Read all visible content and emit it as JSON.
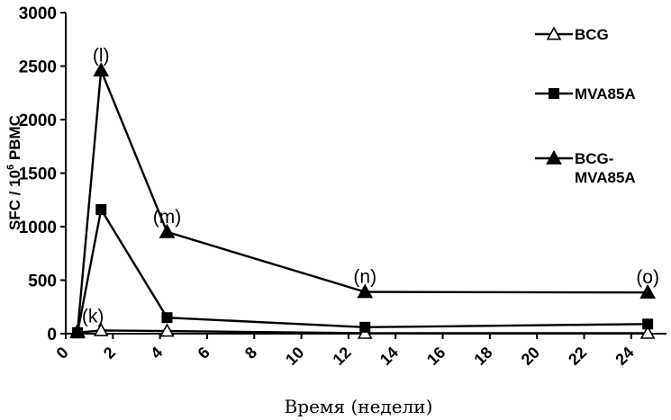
{
  "chart_data": {
    "type": "line",
    "title": "",
    "xlabel": "Время (недели)",
    "ylabel": "SFC / 10",
    "ylabel_sup": "6",
    "ylabel_suffix": " PBMC",
    "xlim": [
      0,
      25
    ],
    "ylim": [
      0,
      3000
    ],
    "xticks": [
      0,
      2,
      4,
      6,
      8,
      10,
      12,
      14,
      16,
      18,
      20,
      22,
      24
    ],
    "yticks": [
      0,
      500,
      1000,
      1500,
      2000,
      2500,
      3000
    ],
    "grid": false,
    "legend_position": "right",
    "series": [
      {
        "name": "BCG",
        "marker": "triangle-open",
        "x": [
          0.5,
          1.5,
          4.3,
          12.7,
          24.7
        ],
        "y": [
          10,
          30,
          25,
          5,
          5
        ]
      },
      {
        "name": "MVA85A",
        "marker": "square-filled",
        "x": [
          0.5,
          1.5,
          4.3,
          12.7,
          24.7
        ],
        "y": [
          10,
          1160,
          150,
          60,
          90
        ]
      },
      {
        "name": "BCG-MVA85A",
        "marker": "triangle-filled",
        "x": [
          0.5,
          1.5,
          4.3,
          12.7,
          24.7
        ],
        "y": [
          20,
          2460,
          950,
          390,
          385
        ]
      }
    ],
    "annotations": [
      {
        "text": "(k)",
        "x": 0.5,
        "y": 20
      },
      {
        "text": "(l)",
        "x": 1.5,
        "y": 2460
      },
      {
        "text": "(m)",
        "x": 4.3,
        "y": 950
      },
      {
        "text": "(n)",
        "x": 12.7,
        "y": 390
      },
      {
        "text": "(o)",
        "x": 24.7,
        "y": 385
      }
    ]
  }
}
